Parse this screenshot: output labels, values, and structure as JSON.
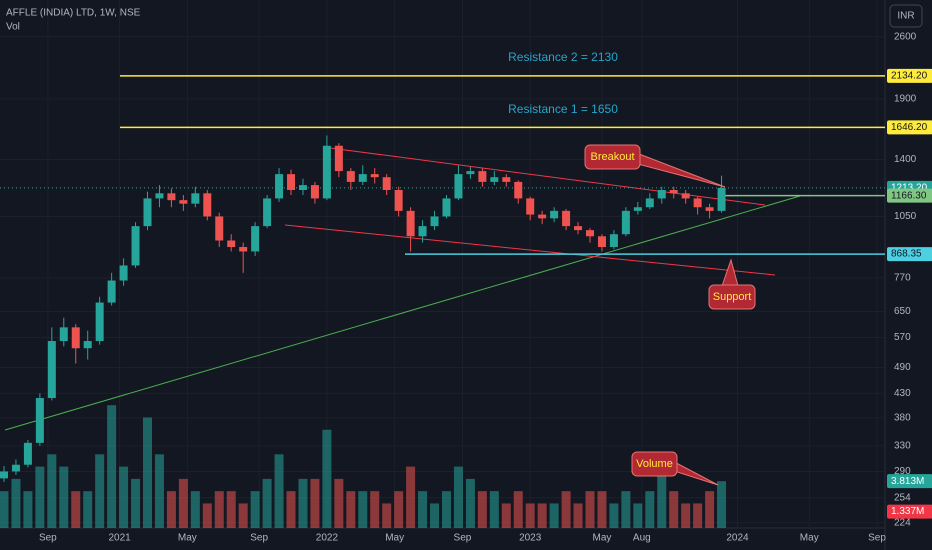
{
  "chart_data": {
    "type": "candlestick",
    "title": "AFFLE (INDIA) LTD, 1W, NSE",
    "subtitle": "Vol",
    "currency": "INR",
    "log_scale": true,
    "x": [
      1,
      4,
      7,
      10,
      13,
      16,
      19,
      22,
      25,
      28,
      31,
      34,
      37,
      40,
      43,
      46,
      49,
      52,
      55,
      58,
      61,
      64,
      67,
      70,
      73,
      76,
      79,
      82,
      85,
      88,
      91,
      94,
      97,
      100,
      103,
      106,
      109,
      112,
      115,
      118,
      121,
      124,
      127,
      130,
      133,
      136,
      139,
      142,
      145,
      148,
      151,
      154,
      157,
      160,
      163,
      166,
      169,
      172,
      175,
      178,
      181
    ],
    "open": [
      280,
      290,
      300,
      335,
      420,
      560,
      600,
      540,
      560,
      680,
      760,
      820,
      1000,
      1150,
      1180,
      1140,
      1120,
      1180,
      1050,
      930,
      900,
      880,
      1000,
      1150,
      1300,
      1200,
      1230,
      1150,
      1500,
      1320,
      1250,
      1300,
      1280,
      1200,
      1080,
      950,
      1000,
      1050,
      1150,
      1300,
      1320,
      1250,
      1280,
      1250,
      1150,
      1060,
      1040,
      1080,
      1000,
      980,
      950,
      900,
      960,
      1080,
      1100,
      1150,
      1200,
      1180,
      1150,
      1100,
      1080
    ],
    "high": [
      298,
      308,
      340,
      430,
      600,
      630,
      610,
      590,
      700,
      790,
      850,
      1020,
      1190,
      1230,
      1210,
      1170,
      1220,
      1200,
      1070,
      960,
      920,
      1020,
      1170,
      1340,
      1330,
      1270,
      1250,
      1580,
      1520,
      1340,
      1360,
      1340,
      1300,
      1220,
      1100,
      1030,
      1080,
      1170,
      1360,
      1350,
      1340,
      1320,
      1300,
      1260,
      1160,
      1080,
      1100,
      1090,
      1020,
      990,
      960,
      980,
      1100,
      1130,
      1180,
      1220,
      1220,
      1200,
      1160,
      1120,
      1290
    ],
    "low": [
      275,
      285,
      296,
      330,
      415,
      545,
      500,
      510,
      550,
      670,
      740,
      810,
      980,
      1100,
      1100,
      1080,
      1100,
      1030,
      900,
      880,
      790,
      860,
      990,
      1130,
      1170,
      1170,
      1120,
      1140,
      1280,
      1200,
      1230,
      1240,
      1170,
      1050,
      880,
      920,
      980,
      1040,
      1140,
      1270,
      1220,
      1230,
      1220,
      1120,
      1030,
      1010,
      1020,
      980,
      960,
      920,
      880,
      890,
      950,
      1060,
      1090,
      1120,
      1150,
      1120,
      1060,
      1040,
      1070
    ],
    "close": [
      290,
      300,
      335,
      420,
      560,
      600,
      540,
      560,
      680,
      760,
      820,
      1000,
      1150,
      1180,
      1140,
      1120,
      1180,
      1050,
      930,
      900,
      880,
      1000,
      1150,
      1300,
      1200,
      1230,
      1150,
      1500,
      1320,
      1250,
      1300,
      1280,
      1200,
      1080,
      950,
      1000,
      1050,
      1150,
      1300,
      1320,
      1250,
      1280,
      1250,
      1150,
      1060,
      1040,
      1080,
      1000,
      980,
      950,
      900,
      960,
      1080,
      1100,
      1150,
      1200,
      1180,
      1150,
      1100,
      1080,
      1213
    ],
    "volume": [
      3,
      4,
      3,
      5,
      6,
      5,
      3,
      3,
      6,
      10,
      5,
      4,
      9,
      6,
      3,
      4,
      3,
      2,
      3,
      3,
      2,
      3,
      4,
      6,
      3,
      4,
      4,
      8,
      4,
      3,
      3,
      3,
      2,
      3,
      5,
      3,
      2,
      3,
      5,
      4,
      3,
      3,
      2,
      3,
      2,
      2,
      2,
      3,
      2,
      3,
      3,
      2,
      3,
      2,
      3,
      5,
      3,
      2,
      2,
      3,
      3.813
    ],
    "up_color": "#26a69a",
    "down_color": "#ef5350",
    "xlim": [
      0,
      222
    ],
    "xticks": [
      {
        "value": 12,
        "label": "Sep"
      },
      {
        "value": 30,
        "label": "2021"
      },
      {
        "value": 47,
        "label": "May"
      },
      {
        "value": 65,
        "label": "Sep"
      },
      {
        "value": 82,
        "label": "2022"
      },
      {
        "value": 99,
        "label": "May"
      },
      {
        "value": 116,
        "label": "Sep"
      },
      {
        "value": 133,
        "label": "2023"
      },
      {
        "value": 151,
        "label": "May"
      },
      {
        "value": 161,
        "label": "Aug"
      },
      {
        "value": 185,
        "label": "2024"
      },
      {
        "value": 203,
        "label": "May"
      },
      {
        "value": 220,
        "label": "Sep"
      }
    ],
    "ylim": [
      218,
      3130
    ],
    "yticks": [
      224,
      254,
      290,
      330,
      380,
      430,
      490,
      570,
      650,
      770,
      1050,
      1400,
      1900,
      2600
    ],
    "y2lim": [
      0,
      43
    ],
    "price_labels": [
      {
        "value": 2134.2,
        "label": "2134.20",
        "color": "#ffeb3b"
      },
      {
        "value": 1646.2,
        "label": "1646.20",
        "color": "#ffeb3b"
      },
      {
        "value": 1213.2,
        "label": "1213.20",
        "color": "#26a69a"
      },
      {
        "value": 1166.3,
        "label": "1166.30",
        "color": "#81c784"
      },
      {
        "value": 868.35,
        "label": "868.35",
        "color": "#4dd0e1"
      }
    ],
    "volume_labels": [
      {
        "value": 3.813,
        "label": "3.813M",
        "color": "#26a69a"
      },
      {
        "value": 1.337,
        "label": "1.337M",
        "color": "#f23645"
      }
    ],
    "annotations": [
      "Resistance 2 = 2130",
      "Resistance 1 = 1650",
      "Breakout",
      "Support",
      "Volume"
    ]
  }
}
